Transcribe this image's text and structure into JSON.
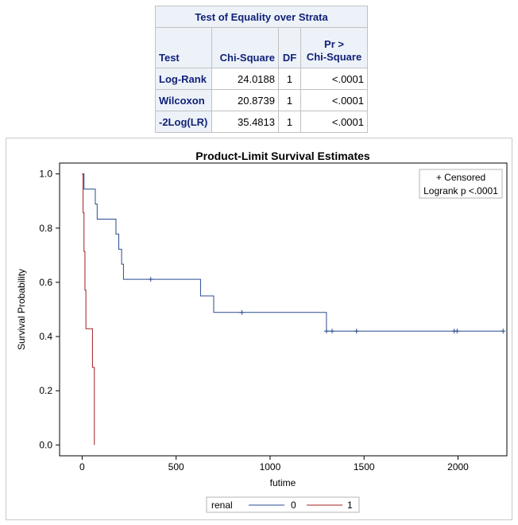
{
  "table": {
    "title": "Test of Equality over Strata",
    "headers": {
      "test": "Test",
      "chisq": "Chi-Square",
      "df": "DF",
      "p_line1": "Pr >",
      "p_line2": "Chi-Square"
    },
    "rows": [
      {
        "test": "Log-Rank",
        "chisq": "24.0188",
        "df": "1",
        "p": "<.0001"
      },
      {
        "test": "Wilcoxon",
        "chisq": "20.8739",
        "df": "1",
        "p": "<.0001"
      },
      {
        "test": "-2Log(LR)",
        "chisq": "35.4813",
        "df": "1",
        "p": "<.0001"
      }
    ]
  },
  "chart_data": {
    "type": "line",
    "title": "Product-Limit Survival Estimates",
    "xlabel": "futime",
    "ylabel": "Survival Probability",
    "xlim": [
      -120,
      2260
    ],
    "ylim": [
      -0.04,
      1.04
    ],
    "xticks": [
      0,
      500,
      1000,
      1500,
      2000
    ],
    "yticks": [
      "0.0",
      "0.2",
      "0.4",
      "0.6",
      "0.8",
      "1.0"
    ],
    "grid": false,
    "inset": {
      "line1": "+ Censored",
      "line2": "Logrank p <.0001"
    },
    "legend": {
      "title": "renal",
      "position": "bottom"
    },
    "series": [
      {
        "name": "0",
        "color": "#2a4b8d",
        "steps": [
          [
            0,
            1.0
          ],
          [
            10,
            0.944
          ],
          [
            70,
            0.889
          ],
          [
            80,
            0.833
          ],
          [
            180,
            0.778
          ],
          [
            195,
            0.722
          ],
          [
            210,
            0.667
          ],
          [
            220,
            0.611
          ],
          [
            630,
            0.55
          ],
          [
            700,
            0.489
          ],
          [
            1300,
            0.42
          ],
          [
            2240,
            0.42
          ]
        ],
        "censored": [
          [
            365,
            0.611
          ],
          [
            850,
            0.489
          ],
          [
            1300,
            0.42
          ],
          [
            1330,
            0.42
          ],
          [
            1460,
            0.42
          ],
          [
            1980,
            0.42
          ],
          [
            1995,
            0.42
          ],
          [
            2240,
            0.42
          ]
        ]
      },
      {
        "name": "1",
        "color": "#a02020",
        "steps": [
          [
            0,
            1.0
          ],
          [
            5,
            0.857
          ],
          [
            10,
            0.714
          ],
          [
            15,
            0.571
          ],
          [
            20,
            0.429
          ],
          [
            55,
            0.286
          ],
          [
            65,
            0.0
          ]
        ],
        "censored": []
      }
    ]
  }
}
